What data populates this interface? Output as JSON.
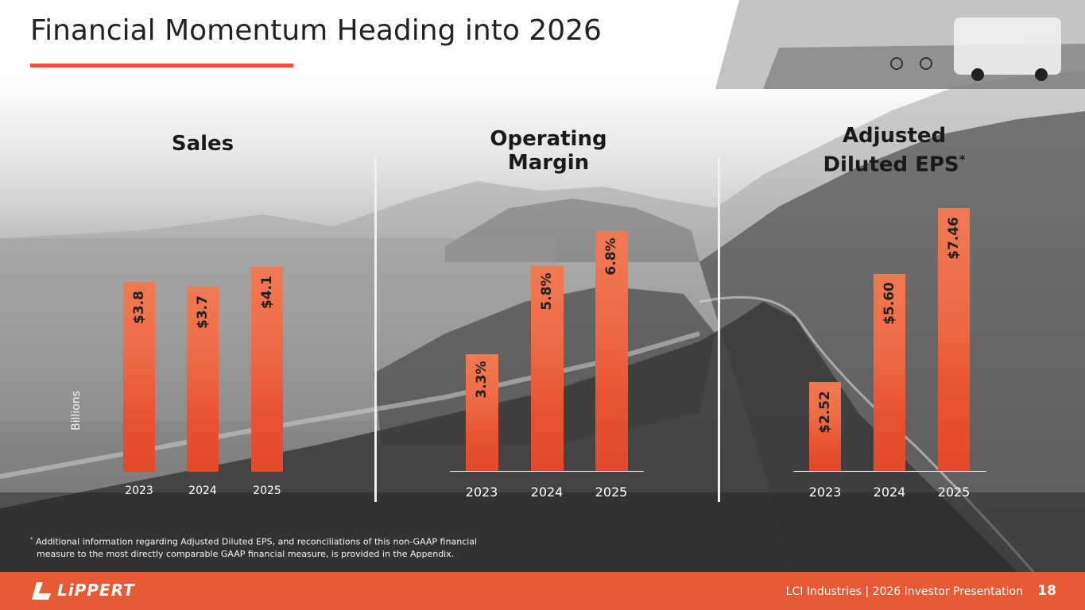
{
  "page": {
    "title": "Financial Momentum Heading into 2026",
    "page_number": "18",
    "footer_text": "LCI Industries | 2026 Investor Presentation",
    "logo_text": "LiPPERT",
    "footnote_line1": "Additional information regarding Adjusted Diluted EPS, and reconciliations of this non-GAAP financial",
    "footnote_line2": "measure to the most directly comparable GAAP financial measure, is provided in the Appendix.",
    "footnote_marker": "*",
    "accent_color": "#e85a35"
  },
  "chart_data": [
    {
      "type": "bar",
      "title": "Sales",
      "ylabel": "Billions",
      "categories": [
        "2023",
        "2024",
        "2025"
      ],
      "values": [
        3.8,
        3.7,
        4.1
      ],
      "labels": [
        "$3.8",
        "$3.7",
        "$4.1"
      ],
      "ylim": [
        0,
        4.1
      ]
    },
    {
      "type": "bar",
      "title_line1": "Operating",
      "title_line2": "Margin",
      "categories": [
        "2023",
        "2024",
        "2025"
      ],
      "values": [
        3.3,
        5.8,
        6.8
      ],
      "labels": [
        "3.3%",
        "5.8%",
        "6.8%"
      ],
      "ylim": [
        0,
        6.8
      ]
    },
    {
      "type": "bar",
      "title_line1": "Adjusted",
      "title_line2": "Diluted EPS",
      "title_marker": "*",
      "categories": [
        "2023",
        "2024",
        "2025"
      ],
      "values": [
        2.52,
        5.6,
        7.46
      ],
      "labels": [
        "$2.52",
        "$5.60",
        "$7.46"
      ],
      "ylim": [
        0,
        7.46
      ]
    }
  ]
}
